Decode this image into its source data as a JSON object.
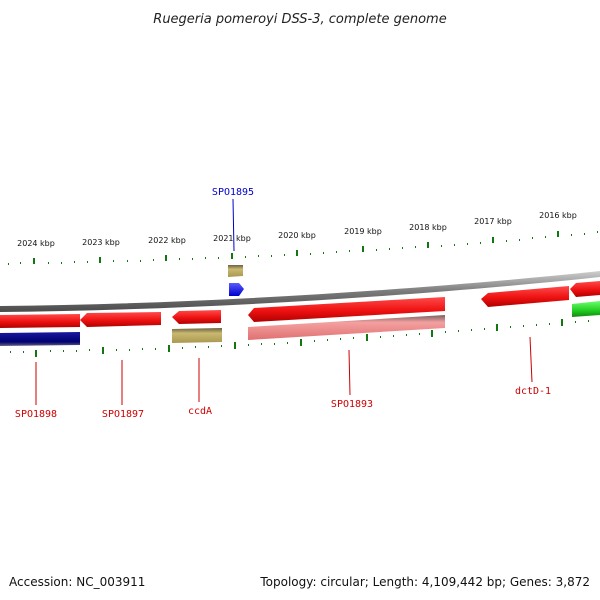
{
  "title": "Ruegeria pomeroyi DSS-3, complete genome",
  "footer": {
    "accession": "Accession: NC_003911",
    "topology": "Topology: circular; Length: 4,109,442 bp; Genes: 3,872"
  },
  "scale": {
    "labels": [
      "2024 kbp",
      "2023 kbp",
      "2022 kbp",
      "2021 kbp",
      "2020 kbp",
      "2019 kbp",
      "2018 kbp",
      "2017 kbp",
      "2016 kbp"
    ]
  },
  "genes": [
    {
      "name": "SPO1898",
      "color": "#cc0000"
    },
    {
      "name": "SPO1897",
      "color": "#cc0000"
    },
    {
      "name": "ccdA",
      "color": "#cc0000"
    },
    {
      "name": "SPO1895",
      "color": "#0000cc"
    },
    {
      "name": "SPO1893",
      "color": "#cc0000"
    },
    {
      "name": "dctD-1",
      "color": "#cc0000"
    }
  ],
  "colors": {
    "cds_red": "#ee1111",
    "cds_pink": "#f08080",
    "cds_navy": "#000080",
    "cds_blue": "#1a1aff",
    "cds_olive": "#b8a860",
    "cds_green": "#22cc22",
    "backbone": "#888888",
    "ticks": "#117711"
  }
}
